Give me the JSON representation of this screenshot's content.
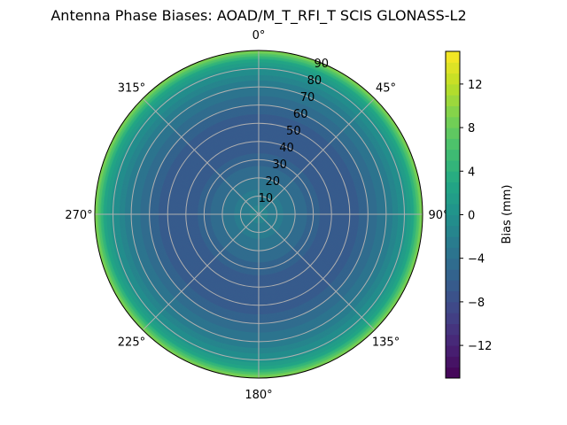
{
  "chart_data": {
    "type": "heatmap",
    "subtype": "polar-contour",
    "title": "Antenna Phase Biases: AOAD/M_T_RFI_T  SCIS GLONASS-L2",
    "angular_tick_labels": [
      "0°",
      "45°",
      "90°",
      "135°",
      "180°",
      "225°",
      "270°",
      "315°"
    ],
    "radial_tick_labels": [
      "10",
      "20",
      "30",
      "40",
      "50",
      "60",
      "70",
      "80",
      "90"
    ],
    "radial_range": [
      0,
      90
    ],
    "theta_zero": "N",
    "theta_direction": "clockwise",
    "grid": true,
    "colormap": "viridis",
    "colorbar": {
      "label": "Bias (mm)",
      "range": [
        -15,
        15
      ],
      "level_step": 1,
      "ticks": [
        -12,
        -8,
        -4,
        0,
        4,
        8,
        12
      ],
      "tick_labels": [
        "−12",
        "−8",
        "−4",
        "0",
        "4",
        "8",
        "12"
      ]
    },
    "radial_profile": {
      "zenith_deg": [
        0,
        10,
        20,
        30,
        40,
        50,
        60,
        70,
        80,
        85,
        90
      ],
      "bias_mm": [
        -1.5,
        -2.5,
        -4,
        -5.5,
        -7,
        -7,
        -5,
        -3,
        0,
        3,
        10
      ]
    }
  }
}
